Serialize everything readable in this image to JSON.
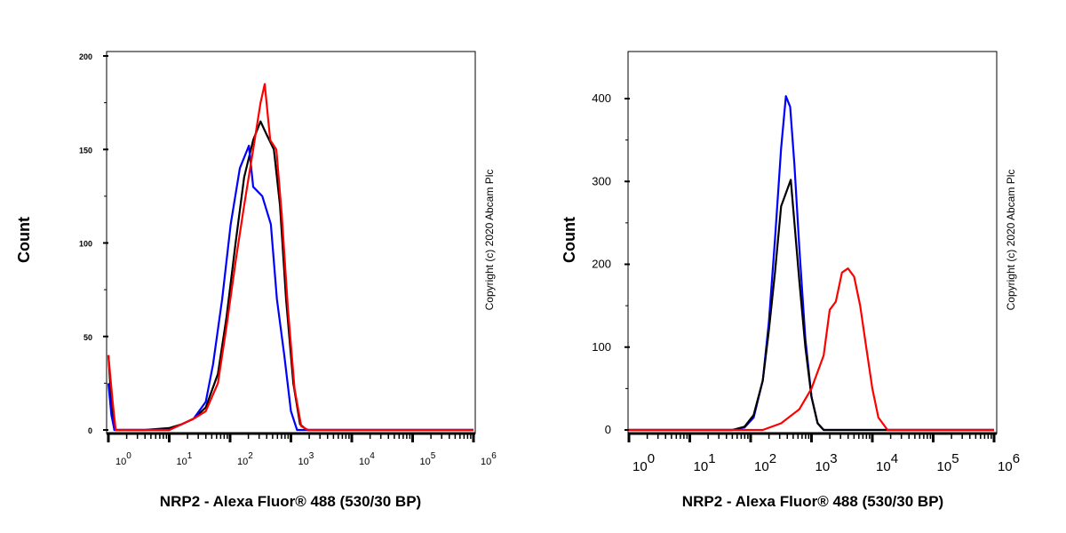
{
  "chart_data": [
    {
      "type": "line",
      "xscale": "log",
      "xlabel": "NRP2 - Alexa Fluor® 488 (530/30 BP)",
      "ylabel": "Count",
      "xlim": [
        1,
        1000000
      ],
      "ylim": [
        0,
        200
      ],
      "yticks": [
        "0",
        "50",
        "100",
        "150",
        "200"
      ],
      "xticks": [
        {
          "base": "10",
          "exp": "0"
        },
        {
          "base": "10",
          "exp": "1"
        },
        {
          "base": "10",
          "exp": "2"
        },
        {
          "base": "10",
          "exp": "3"
        },
        {
          "base": "10",
          "exp": "4"
        },
        {
          "base": "10",
          "exp": "5"
        },
        {
          "base": "10",
          "exp": "6"
        }
      ],
      "copyright": "Copyright (c) 2020 Abcam Plc",
      "series": [
        {
          "color": "#000000",
          "points_log10x": [
            [
              0,
              40
            ],
            [
              0.05,
              15
            ],
            [
              0.1,
              0
            ],
            [
              0.6,
              0
            ],
            [
              1,
              1
            ],
            [
              1.2,
              3
            ],
            [
              1.4,
              6
            ],
            [
              1.6,
              12
            ],
            [
              1.8,
              30
            ],
            [
              1.94,
              60
            ],
            [
              2.09,
              100
            ],
            [
              2.23,
              135
            ],
            [
              2.38,
              155
            ],
            [
              2.5,
              165
            ],
            [
              2.6,
              158
            ],
            [
              2.72,
              150
            ],
            [
              2.82,
              120
            ],
            [
              2.92,
              70
            ],
            [
              3.04,
              25
            ],
            [
              3.15,
              3
            ],
            [
              3.26,
              0
            ],
            [
              6,
              0
            ]
          ]
        },
        {
          "color": "#0000ff",
          "points_log10x": [
            [
              0,
              25
            ],
            [
              0.05,
              8
            ],
            [
              0.1,
              0
            ],
            [
              1,
              0
            ],
            [
              1.2,
              3
            ],
            [
              1.4,
              6
            ],
            [
              1.6,
              15
            ],
            [
              1.72,
              35
            ],
            [
              1.87,
              70
            ],
            [
              2.01,
              110
            ],
            [
              2.16,
              140
            ],
            [
              2.31,
              152
            ],
            [
              2.38,
              130
            ],
            [
              2.53,
              125
            ],
            [
              2.67,
              110
            ],
            [
              2.77,
              70
            ],
            [
              2.89,
              40
            ],
            [
              3.0,
              10
            ],
            [
              3.1,
              0
            ],
            [
              6,
              0
            ]
          ]
        },
        {
          "color": "#ff0000",
          "points_log10x": [
            [
              0,
              40
            ],
            [
              0.07,
              15
            ],
            [
              0.12,
              0
            ],
            [
              1,
              0
            ],
            [
              1.2,
              3
            ],
            [
              1.4,
              6
            ],
            [
              1.6,
              10
            ],
            [
              1.8,
              25
            ],
            [
              1.94,
              55
            ],
            [
              2.09,
              90
            ],
            [
              2.23,
              120
            ],
            [
              2.38,
              150
            ],
            [
              2.5,
              175
            ],
            [
              2.57,
              185
            ],
            [
              2.66,
              155
            ],
            [
              2.76,
              150
            ],
            [
              2.85,
              115
            ],
            [
              2.95,
              65
            ],
            [
              3.06,
              22
            ],
            [
              3.17,
              2
            ],
            [
              3.28,
              0
            ],
            [
              6,
              0
            ]
          ]
        }
      ]
    },
    {
      "type": "line",
      "xscale": "log",
      "xlabel": "NRP2 - Alexa Fluor® 488 (530/30 BP)",
      "ylabel": "Count",
      "xlim": [
        1,
        1000000
      ],
      "ylim": [
        0,
        400
      ],
      "yticks": [
        "0",
        "100",
        "200",
        "300",
        "400"
      ],
      "xticks": [
        {
          "base": "10",
          "exp": "0"
        },
        {
          "base": "10",
          "exp": "1"
        },
        {
          "base": "10",
          "exp": "2"
        },
        {
          "base": "10",
          "exp": "3"
        },
        {
          "base": "10",
          "exp": "4"
        },
        {
          "base": "10",
          "exp": "5"
        },
        {
          "base": "10",
          "exp": "6"
        }
      ],
      "copyright": "Copyright (c) 2020 Abcam Plc",
      "series": [
        {
          "color": "#0000ff",
          "points_log10x": [
            [
              0,
              0
            ],
            [
              1.7,
              0
            ],
            [
              1.9,
              3
            ],
            [
              2.05,
              15
            ],
            [
              2.2,
              60
            ],
            [
              2.3,
              130
            ],
            [
              2.4,
              230
            ],
            [
              2.5,
              340
            ],
            [
              2.58,
              403
            ],
            [
              2.65,
              390
            ],
            [
              2.72,
              320
            ],
            [
              2.8,
              220
            ],
            [
              2.9,
              110
            ],
            [
              3.0,
              40
            ],
            [
              3.1,
              8
            ],
            [
              3.2,
              0
            ],
            [
              6,
              0
            ]
          ]
        },
        {
          "color": "#000000",
          "points_log10x": [
            [
              0,
              0
            ],
            [
              1.7,
              0
            ],
            [
              1.9,
              4
            ],
            [
              2.05,
              18
            ],
            [
              2.2,
              60
            ],
            [
              2.3,
              120
            ],
            [
              2.4,
              190
            ],
            [
              2.5,
              270
            ],
            [
              2.6,
              290
            ],
            [
              2.66,
              302
            ],
            [
              2.72,
              250
            ],
            [
              2.8,
              180
            ],
            [
              2.9,
              100
            ],
            [
              3.0,
              40
            ],
            [
              3.1,
              8
            ],
            [
              3.2,
              0
            ],
            [
              6,
              0
            ]
          ]
        },
        {
          "color": "#ff0000",
          "points_log10x": [
            [
              0,
              0
            ],
            [
              2.2,
              0
            ],
            [
              2.5,
              8
            ],
            [
              2.8,
              25
            ],
            [
              3.0,
              50
            ],
            [
              3.2,
              90
            ],
            [
              3.3,
              145
            ],
            [
              3.4,
              155
            ],
            [
              3.5,
              190
            ],
            [
              3.6,
              195
            ],
            [
              3.7,
              185
            ],
            [
              3.8,
              150
            ],
            [
              3.9,
              100
            ],
            [
              4.0,
              50
            ],
            [
              4.1,
              15
            ],
            [
              4.25,
              0
            ],
            [
              6,
              0
            ]
          ]
        }
      ]
    }
  ]
}
